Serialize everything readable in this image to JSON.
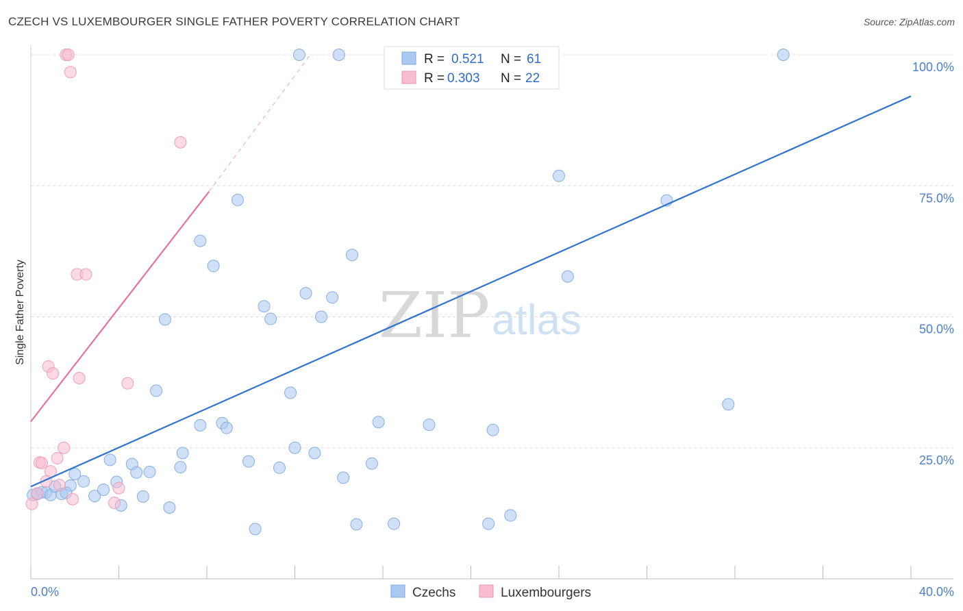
{
  "header": {
    "title": "CZECH VS LUXEMBOURGER SINGLE FATHER POVERTY CORRELATION CHART",
    "source": "Source: ZipAtlas.com"
  },
  "watermark": {
    "zip": "ZIP",
    "atlas": "atlas"
  },
  "legend_box": {
    "rows": [
      {
        "r_label": "R =",
        "r_value": "0.521",
        "n_label": "N =",
        "n_value": "61",
        "color": "#aac8f0"
      },
      {
        "r_label": "R =",
        "r_value": "0.303",
        "n_label": "N =",
        "n_value": "22",
        "color": "#f7bcd0"
      }
    ]
  },
  "chart_data": {
    "type": "scatter",
    "title": "CZECH VS LUXEMBOURGER SINGLE FATHER POVERTY CORRELATION CHART",
    "xlabel": "",
    "ylabel": "Single Father Poverty",
    "xlim": [
      0,
      40
    ],
    "ylim": [
      0,
      100
    ],
    "x_tick_labels": [
      "0.0%",
      "40.0%"
    ],
    "y_ticks": [
      25,
      50,
      75,
      100
    ],
    "y_tick_labels": [
      "25.0%",
      "50.0%",
      "75.0%",
      "100.0%"
    ],
    "grid": "horizontal dashed",
    "series": [
      {
        "name": "Czechs",
        "color": "#aac8f0",
        "line_color": "#2f73cf",
        "trend": {
          "x": [
            0,
            40
          ],
          "y": [
            17.6,
            92.1
          ]
        },
        "points": [
          [
            0.1,
            16.0
          ],
          [
            0.5,
            16.5
          ],
          [
            0.7,
            16.5
          ],
          [
            0.9,
            16.0
          ],
          [
            1.1,
            17.6
          ],
          [
            1.4,
            16.2
          ],
          [
            1.8,
            17.8
          ],
          [
            2.0,
            20.0
          ],
          [
            2.4,
            18.6
          ],
          [
            2.9,
            15.8
          ],
          [
            3.6,
            22.7
          ],
          [
            3.9,
            18.5
          ],
          [
            4.1,
            14.0
          ],
          [
            4.6,
            21.9
          ],
          [
            4.8,
            20.3
          ],
          [
            5.1,
            15.7
          ],
          [
            5.4,
            20.4
          ],
          [
            5.7,
            35.9
          ],
          [
            6.1,
            49.5
          ],
          [
            6.3,
            13.6
          ],
          [
            6.8,
            21.3
          ],
          [
            6.9,
            24.0
          ],
          [
            7.7,
            29.3
          ],
          [
            7.7,
            64.5
          ],
          [
            8.3,
            59.7
          ],
          [
            8.7,
            29.7
          ],
          [
            8.9,
            28.8
          ],
          [
            9.4,
            72.3
          ],
          [
            9.9,
            22.4
          ],
          [
            10.2,
            9.5
          ],
          [
            10.6,
            52.0
          ],
          [
            10.9,
            49.6
          ],
          [
            11.3,
            21.2
          ],
          [
            11.8,
            35.5
          ],
          [
            12.0,
            25.0
          ],
          [
            12.5,
            54.5
          ],
          [
            12.9,
            24.0
          ],
          [
            12.2,
            100.0
          ],
          [
            13.2,
            50.0
          ],
          [
            13.7,
            53.7
          ],
          [
            14.0,
            100.0
          ],
          [
            14.2,
            19.3
          ],
          [
            14.6,
            61.8
          ],
          [
            14.8,
            10.4
          ],
          [
            15.5,
            22.0
          ],
          [
            15.8,
            29.9
          ],
          [
            16.5,
            10.5
          ],
          [
            18.1,
            29.4
          ],
          [
            20.4,
            100.0
          ],
          [
            20.8,
            10.5
          ],
          [
            21.0,
            28.4
          ],
          [
            21.8,
            12.1
          ],
          [
            23.2,
            100.0
          ],
          [
            24.0,
            76.9
          ],
          [
            24.4,
            57.7
          ],
          [
            28.9,
            72.2
          ],
          [
            31.7,
            33.3
          ],
          [
            34.2,
            100.0
          ],
          [
            0.3,
            16.2
          ],
          [
            1.6,
            16.4
          ],
          [
            3.3,
            17.0
          ]
        ]
      },
      {
        "name": "Luxembourgers",
        "color": "#f7bcd0",
        "line_color": "#e8709a",
        "trend": {
          "x": [
            0,
            8.1
          ],
          "y": [
            30.0,
            73.9
          ]
        },
        "trend_dashed": {
          "x": [
            8.1,
            12.7
          ],
          "y": [
            73.9,
            100
          ]
        },
        "points": [
          [
            0.05,
            14.3
          ],
          [
            0.3,
            16.3
          ],
          [
            0.4,
            22.2
          ],
          [
            0.5,
            22.1
          ],
          [
            0.7,
            18.6
          ],
          [
            0.8,
            40.5
          ],
          [
            0.9,
            20.5
          ],
          [
            1.0,
            39.2
          ],
          [
            1.2,
            23.0
          ],
          [
            1.3,
            17.9
          ],
          [
            1.5,
            25.0
          ],
          [
            1.6,
            100.0
          ],
          [
            1.7,
            100.0
          ],
          [
            1.8,
            96.7
          ],
          [
            1.9,
            15.2
          ],
          [
            2.1,
            58.1
          ],
          [
            2.2,
            38.3
          ],
          [
            2.5,
            58.1
          ],
          [
            3.8,
            14.5
          ],
          [
            4.0,
            17.3
          ],
          [
            4.4,
            37.3
          ],
          [
            6.8,
            83.3
          ]
        ]
      }
    ]
  },
  "bottom_legend": {
    "items": [
      {
        "label": "Czechs",
        "color": "#aac8f0"
      },
      {
        "label": "Luxembourgers",
        "color": "#f7bcd0"
      }
    ]
  }
}
